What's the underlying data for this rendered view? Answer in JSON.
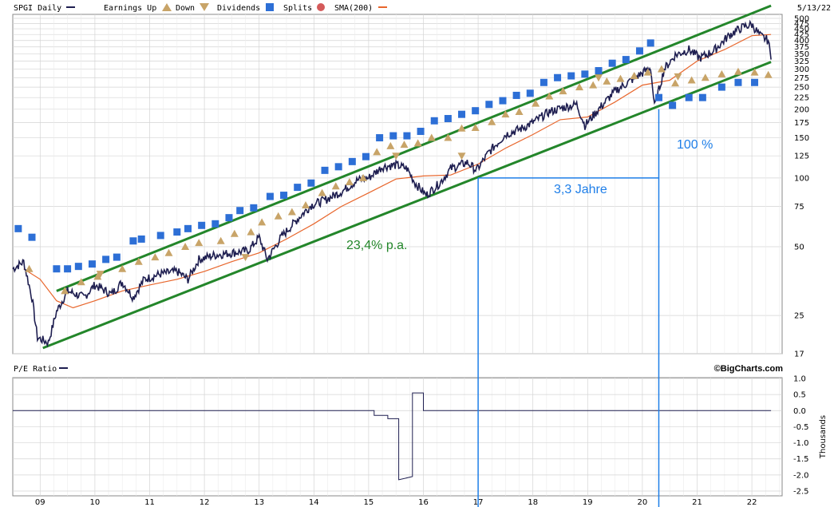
{
  "chart_data": [
    {
      "type": "line",
      "series": [
        {
          "name": "SPGI Daily",
          "color": "#1e1e50"
        },
        {
          "name": "SMA(200)",
          "color": "#e8662c"
        }
      ],
      "legend": {
        "ticker_label": "SPGI Daily",
        "earnings_up": "Earnings Up",
        "down": "Down",
        "dividends": "Dividends",
        "splits": "Splits",
        "sma": "SMA(200)",
        "placement": "top-left"
      },
      "date_label": "5/13/22",
      "y_scale": "log",
      "y_ticks": [
        "17",
        "25",
        "50",
        "75",
        "100",
        "125",
        "150",
        "175",
        "200",
        "225",
        "250",
        "275",
        "300",
        "325",
        "350",
        "375",
        "400",
        "425",
        "450",
        "475",
        "500"
      ],
      "x_ticks": [
        "09",
        "10",
        "11",
        "12",
        "13",
        "14",
        "15",
        "16",
        "17",
        "18",
        "19",
        "20",
        "21",
        "22"
      ],
      "price_points": [
        [
          2008.5,
          40
        ],
        [
          2008.7,
          43
        ],
        [
          2008.85,
          30
        ],
        [
          2008.95,
          20
        ],
        [
          2009.15,
          19
        ],
        [
          2009.3,
          26
        ],
        [
          2009.5,
          32
        ],
        [
          2009.8,
          30
        ],
        [
          2010.0,
          34
        ],
        [
          2010.3,
          31
        ],
        [
          2010.5,
          35
        ],
        [
          2010.7,
          30
        ],
        [
          2010.9,
          36
        ],
        [
          2011.2,
          38
        ],
        [
          2011.5,
          39
        ],
        [
          2011.7,
          36
        ],
        [
          2011.9,
          44
        ],
        [
          2012.2,
          46
        ],
        [
          2012.5,
          47
        ],
        [
          2012.8,
          48
        ],
        [
          2013.0,
          55
        ],
        [
          2013.15,
          44
        ],
        [
          2013.4,
          55
        ],
        [
          2013.7,
          66
        ],
        [
          2013.95,
          76
        ],
        [
          2014.2,
          80
        ],
        [
          2014.5,
          87
        ],
        [
          2014.8,
          98
        ],
        [
          2015.0,
          100
        ],
        [
          2015.25,
          112
        ],
        [
          2015.5,
          114
        ],
        [
          2015.7,
          110
        ],
        [
          2015.85,
          95
        ],
        [
          2016.05,
          84
        ],
        [
          2016.3,
          95
        ],
        [
          2016.5,
          110
        ],
        [
          2016.8,
          117
        ],
        [
          2016.97,
          108
        ],
        [
          2017.2,
          130
        ],
        [
          2017.5,
          155
        ],
        [
          2017.8,
          165
        ],
        [
          2018.0,
          175
        ],
        [
          2018.3,
          195
        ],
        [
          2018.6,
          205
        ],
        [
          2018.8,
          210
        ],
        [
          2018.95,
          170
        ],
        [
          2019.2,
          200
        ],
        [
          2019.5,
          240
        ],
        [
          2019.8,
          268
        ],
        [
          2019.97,
          285
        ],
        [
          2020.15,
          305
        ],
        [
          2020.22,
          205
        ],
        [
          2020.4,
          300
        ],
        [
          2020.6,
          345
        ],
        [
          2020.85,
          365
        ],
        [
          2021.05,
          335
        ],
        [
          2021.3,
          360
        ],
        [
          2021.6,
          425
        ],
        [
          2021.85,
          460
        ],
        [
          2022.0,
          470
        ],
        [
          2022.15,
          420
        ],
        [
          2022.3,
          400
        ],
        [
          2022.35,
          330
        ]
      ],
      "sma_points": [
        [
          2008.7,
          40
        ],
        [
          2009.0,
          36
        ],
        [
          2009.3,
          29
        ],
        [
          2009.6,
          27
        ],
        [
          2010.0,
          29
        ],
        [
          2010.5,
          32
        ],
        [
          2011.0,
          34
        ],
        [
          2011.5,
          36
        ],
        [
          2012.0,
          39
        ],
        [
          2012.5,
          43
        ],
        [
          2013.0,
          47
        ],
        [
          2013.5,
          54
        ],
        [
          2014.0,
          63
        ],
        [
          2014.5,
          75
        ],
        [
          2015.0,
          86
        ],
        [
          2015.5,
          99
        ],
        [
          2016.0,
          102
        ],
        [
          2016.5,
          103
        ],
        [
          2017.0,
          115
        ],
        [
          2017.5,
          135
        ],
        [
          2018.0,
          155
        ],
        [
          2018.5,
          180
        ],
        [
          2019.0,
          185
        ],
        [
          2019.5,
          215
        ],
        [
          2020.0,
          255
        ],
        [
          2020.5,
          268
        ],
        [
          2021.0,
          325
        ],
        [
          2021.5,
          365
        ],
        [
          2022.0,
          420
        ],
        [
          2022.35,
          425
        ]
      ],
      "trend_lines": [
        {
          "from": [
            2009.3,
            32
          ],
          "to": [
            2022.35,
            568
          ]
        },
        {
          "from": [
            2009.05,
            18
          ],
          "to": [
            2022.35,
            322
          ]
        }
      ],
      "annotations": {
        "rate": "23,4% p.a.",
        "period": "3,3 Jahre",
        "gain": "100 %",
        "period_from_year": 2017.0,
        "period_to_year": 2020.3,
        "price_level": 100
      },
      "dividend_markers": [
        [
          2008.6,
          60
        ],
        [
          2008.85,
          55
        ],
        [
          2009.3,
          40
        ],
        [
          2009.5,
          40
        ],
        [
          2009.7,
          41
        ],
        [
          2009.95,
          42
        ],
        [
          2010.2,
          44
        ],
        [
          2010.4,
          45
        ],
        [
          2010.7,
          53
        ],
        [
          2010.85,
          54
        ],
        [
          2011.2,
          56
        ],
        [
          2011.5,
          58
        ],
        [
          2011.7,
          60
        ],
        [
          2011.95,
          62
        ],
        [
          2012.2,
          63
        ],
        [
          2012.45,
          67
        ],
        [
          2012.65,
          72
        ],
        [
          2012.9,
          74
        ],
        [
          2013.2,
          83
        ],
        [
          2013.45,
          84
        ],
        [
          2013.7,
          91
        ],
        [
          2013.95,
          95
        ],
        [
          2014.2,
          108
        ],
        [
          2014.45,
          112
        ],
        [
          2014.7,
          118
        ],
        [
          2014.95,
          124
        ],
        [
          2015.2,
          150
        ],
        [
          2015.45,
          153
        ],
        [
          2015.7,
          153
        ],
        [
          2015.95,
          160
        ],
        [
          2016.2,
          178
        ],
        [
          2016.45,
          182
        ],
        [
          2016.7,
          190
        ],
        [
          2016.95,
          197
        ],
        [
          2017.2,
          210
        ],
        [
          2017.45,
          218
        ],
        [
          2017.7,
          230
        ],
        [
          2017.95,
          235
        ],
        [
          2018.2,
          262
        ],
        [
          2018.45,
          275
        ],
        [
          2018.7,
          280
        ],
        [
          2018.95,
          285
        ],
        [
          2019.2,
          295
        ],
        [
          2019.45,
          318
        ],
        [
          2019.7,
          330
        ],
        [
          2019.95,
          360
        ],
        [
          2020.15,
          390
        ],
        [
          2020.3,
          225
        ],
        [
          2020.55,
          208
        ],
        [
          2020.85,
          225
        ],
        [
          2021.1,
          225
        ],
        [
          2021.45,
          250
        ],
        [
          2021.75,
          262
        ],
        [
          2022.05,
          262
        ]
      ],
      "earnings_up_markers": [
        [
          2008.8,
          40
        ],
        [
          2009.45,
          32
        ],
        [
          2009.75,
          35
        ],
        [
          2010.05,
          37
        ],
        [
          2010.5,
          40
        ],
        [
          2010.8,
          43
        ],
        [
          2011.1,
          45
        ],
        [
          2011.35,
          47
        ],
        [
          2011.65,
          50
        ],
        [
          2011.9,
          52
        ],
        [
          2012.3,
          53
        ],
        [
          2012.55,
          57
        ],
        [
          2012.85,
          58
        ],
        [
          2013.05,
          64
        ],
        [
          2013.35,
          68
        ],
        [
          2013.6,
          71
        ],
        [
          2013.85,
          76
        ],
        [
          2014.15,
          86
        ],
        [
          2014.4,
          92
        ],
        [
          2014.65,
          96
        ],
        [
          2014.9,
          100
        ],
        [
          2015.15,
          130
        ],
        [
          2015.4,
          138
        ],
        [
          2015.65,
          140
        ],
        [
          2015.9,
          142
        ],
        [
          2016.15,
          150
        ],
        [
          2016.45,
          150
        ],
        [
          2016.7,
          165
        ],
        [
          2016.95,
          166
        ],
        [
          2017.25,
          176
        ],
        [
          2017.5,
          190
        ],
        [
          2017.75,
          195
        ],
        [
          2018.05,
          212
        ],
        [
          2018.3,
          228
        ],
        [
          2018.55,
          240
        ],
        [
          2018.85,
          250
        ],
        [
          2019.1,
          255
        ],
        [
          2019.35,
          265
        ],
        [
          2019.6,
          272
        ],
        [
          2019.85,
          280
        ],
        [
          2020.1,
          290
        ],
        [
          2020.35,
          300
        ],
        [
          2020.6,
          260
        ],
        [
          2020.9,
          268
        ],
        [
          2021.15,
          275
        ],
        [
          2021.45,
          285
        ],
        [
          2021.75,
          292
        ],
        [
          2022.05,
          290
        ],
        [
          2022.3,
          283
        ]
      ],
      "earnings_down_markers": [
        [
          2010.1,
          38
        ],
        [
          2012.75,
          45
        ],
        [
          2015.5,
          125
        ],
        [
          2016.7,
          125
        ],
        [
          2019.2,
          275
        ],
        [
          2020.65,
          278
        ]
      ]
    },
    {
      "type": "line",
      "series": [
        {
          "name": "P/E Ratio",
          "color": "#1e1e50"
        }
      ],
      "ylabel": "Thousands",
      "y_ticks": [
        "1.0",
        "0.5",
        "0.0",
        "-0.5",
        "-1.0",
        "-1.5",
        "-2.0",
        "-2.5"
      ],
      "ylim": [
        -2.5,
        1.0
      ],
      "points": [
        [
          2008.5,
          0.0
        ],
        [
          2015.1,
          0.0
        ],
        [
          2015.1,
          -0.15
        ],
        [
          2015.35,
          -0.15
        ],
        [
          2015.35,
          -0.25
        ],
        [
          2015.55,
          -0.25
        ],
        [
          2015.55,
          -2.15
        ],
        [
          2015.8,
          -2.05
        ],
        [
          2015.8,
          0.55
        ],
        [
          2016.0,
          0.55
        ],
        [
          2016.0,
          0.0
        ],
        [
          2022.35,
          0.0
        ]
      ]
    }
  ],
  "watermark": "©BigCharts.com",
  "colors": {
    "price": "#1e1e50",
    "sma": "#e8662c",
    "trend": "#23862a",
    "annot": "#1e7ee8",
    "grid": "#d4d4d4",
    "div_marker": "#2d6fd6",
    "earn_marker": "#c8a468"
  }
}
